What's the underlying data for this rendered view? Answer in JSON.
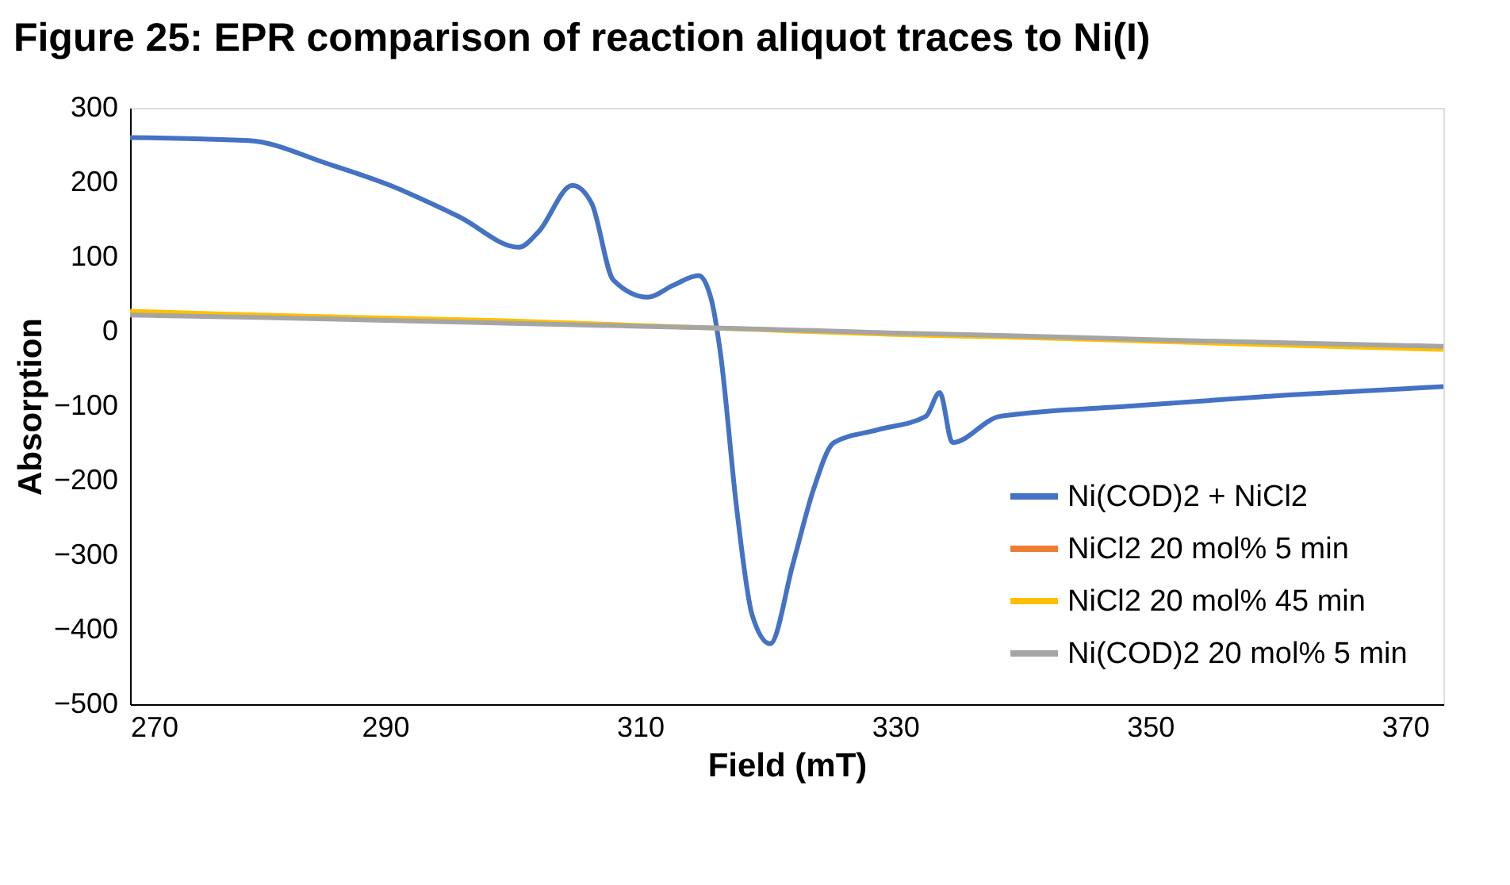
{
  "chart_data": {
    "type": "line",
    "title": "Figure 25: EPR comparison of reaction aliquot traces to Ni(I)",
    "xlabel": "Field (mT)",
    "ylabel": "Absorption",
    "xlim": [
      270,
      373
    ],
    "xticks": [
      270,
      290,
      310,
      330,
      350,
      370
    ],
    "ylim": [
      -500,
      300
    ],
    "yticks": [
      -500,
      -400,
      -300,
      -200,
      -100,
      0,
      100,
      200,
      300
    ],
    "grid": false,
    "legend": "bottom right",
    "marker": "none",
    "line_style": "solid",
    "series": [
      {
        "name": "Ni(COD)2 + NiCl2",
        "color": "#4472c4",
        "x": [
          270,
          279.3,
          285.5,
          290.4,
          295.8,
          300.5,
          302,
          304.7,
          306.2,
          307.9,
          310.6,
          312.6,
          314.6,
          315.6,
          316.3,
          317.6,
          318.8,
          320.2,
          322,
          323.6,
          325.2,
          328.6,
          332.4,
          333.5,
          334.5,
          338.2,
          348.5,
          360.9,
          373
        ],
        "values": [
          260,
          256,
          225,
          196,
          154,
          113,
          133,
          196,
          172,
          69,
          46,
          62,
          75,
          42,
          -29,
          -241,
          -381,
          -419,
          -311,
          -212,
          -149,
          -132,
          -114,
          -82,
          -149,
          -114,
          -100,
          -85,
          -74
        ]
      },
      {
        "name": "NiCl2 20 mol% 5 min",
        "color": "#ed7d31"
      },
      {
        "name": "NiCl2 20 mol% 45 min",
        "color": "#ffc000",
        "x": [
          270,
          280,
          290,
          300,
          310,
          320,
          330,
          340,
          350,
          360,
          373
        ],
        "values": [
          27,
          22,
          18,
          14,
          8,
          2,
          -4,
          -8,
          -13,
          -18,
          -24
        ]
      },
      {
        "name": "Ni(COD)2 20 mol% 5 min",
        "color": "#a5a5a5",
        "x": [
          270,
          280,
          290,
          300,
          310,
          320,
          330,
          340,
          350,
          360,
          373
        ],
        "values": [
          22,
          19,
          15,
          11,
          7,
          3,
          -2,
          -6,
          -11,
          -15,
          -20
        ]
      }
    ]
  }
}
